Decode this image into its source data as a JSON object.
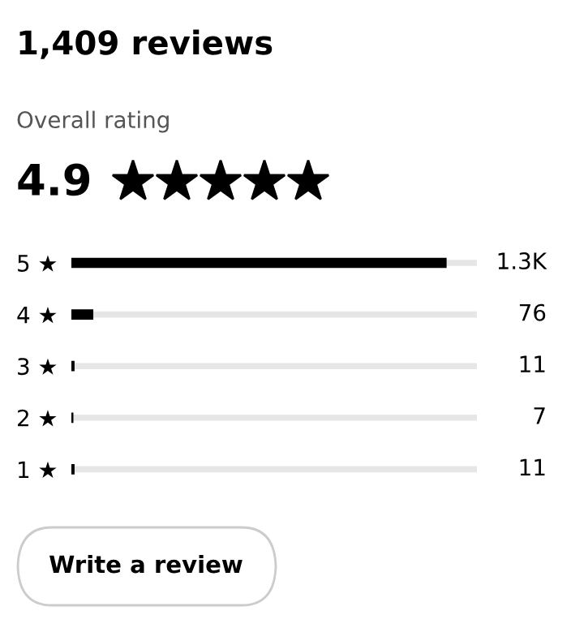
{
  "chart_data": {
    "type": "bar",
    "orientation": "horizontal",
    "title": "1,409 reviews",
    "subtitle": "Overall rating",
    "categories": [
      "5 ★",
      "4 ★",
      "3 ★",
      "2 ★",
      "1 ★"
    ],
    "values": [
      1300,
      76,
      11,
      7,
      11
    ],
    "value_labels": [
      "1.3K",
      "76",
      "11",
      "7",
      "11"
    ],
    "color": "#000000",
    "annotations": [
      "4.9",
      "Write a review"
    ]
  }
}
